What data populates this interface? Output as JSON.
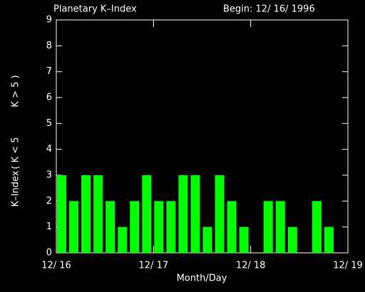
{
  "chart_data": {
    "type": "bar",
    "title": "Planetary K–Index",
    "subtitle": "Begin: 12/ 16/ 1996",
    "xlabel": "Month/Day",
    "ylabel": "K–Index",
    "legend": [
      {
        "name": "( K < 5",
        "color": "#00ff00"
      },
      {
        "name": "K > 5 )",
        "color": "#ff2020"
      }
    ],
    "values": [
      3,
      2,
      3,
      3,
      2,
      1,
      2,
      3,
      2,
      2,
      3,
      3,
      1,
      3,
      2,
      1,
      null,
      2,
      2,
      1,
      null,
      2,
      1,
      null
    ],
    "color": "#00ff00",
    "xlim": [
      0,
      3
    ],
    "xticks": [
      {
        "value": 0,
        "label": "12/ 16"
      },
      {
        "value": 1,
        "label": "12/ 17"
      },
      {
        "value": 2,
        "label": "12/ 18"
      },
      {
        "value": 3,
        "label": "12/ 19"
      }
    ],
    "ylim": [
      0,
      9
    ],
    "yticks": [
      0,
      1,
      2,
      3,
      4,
      5,
      6,
      7,
      8,
      9
    ]
  }
}
